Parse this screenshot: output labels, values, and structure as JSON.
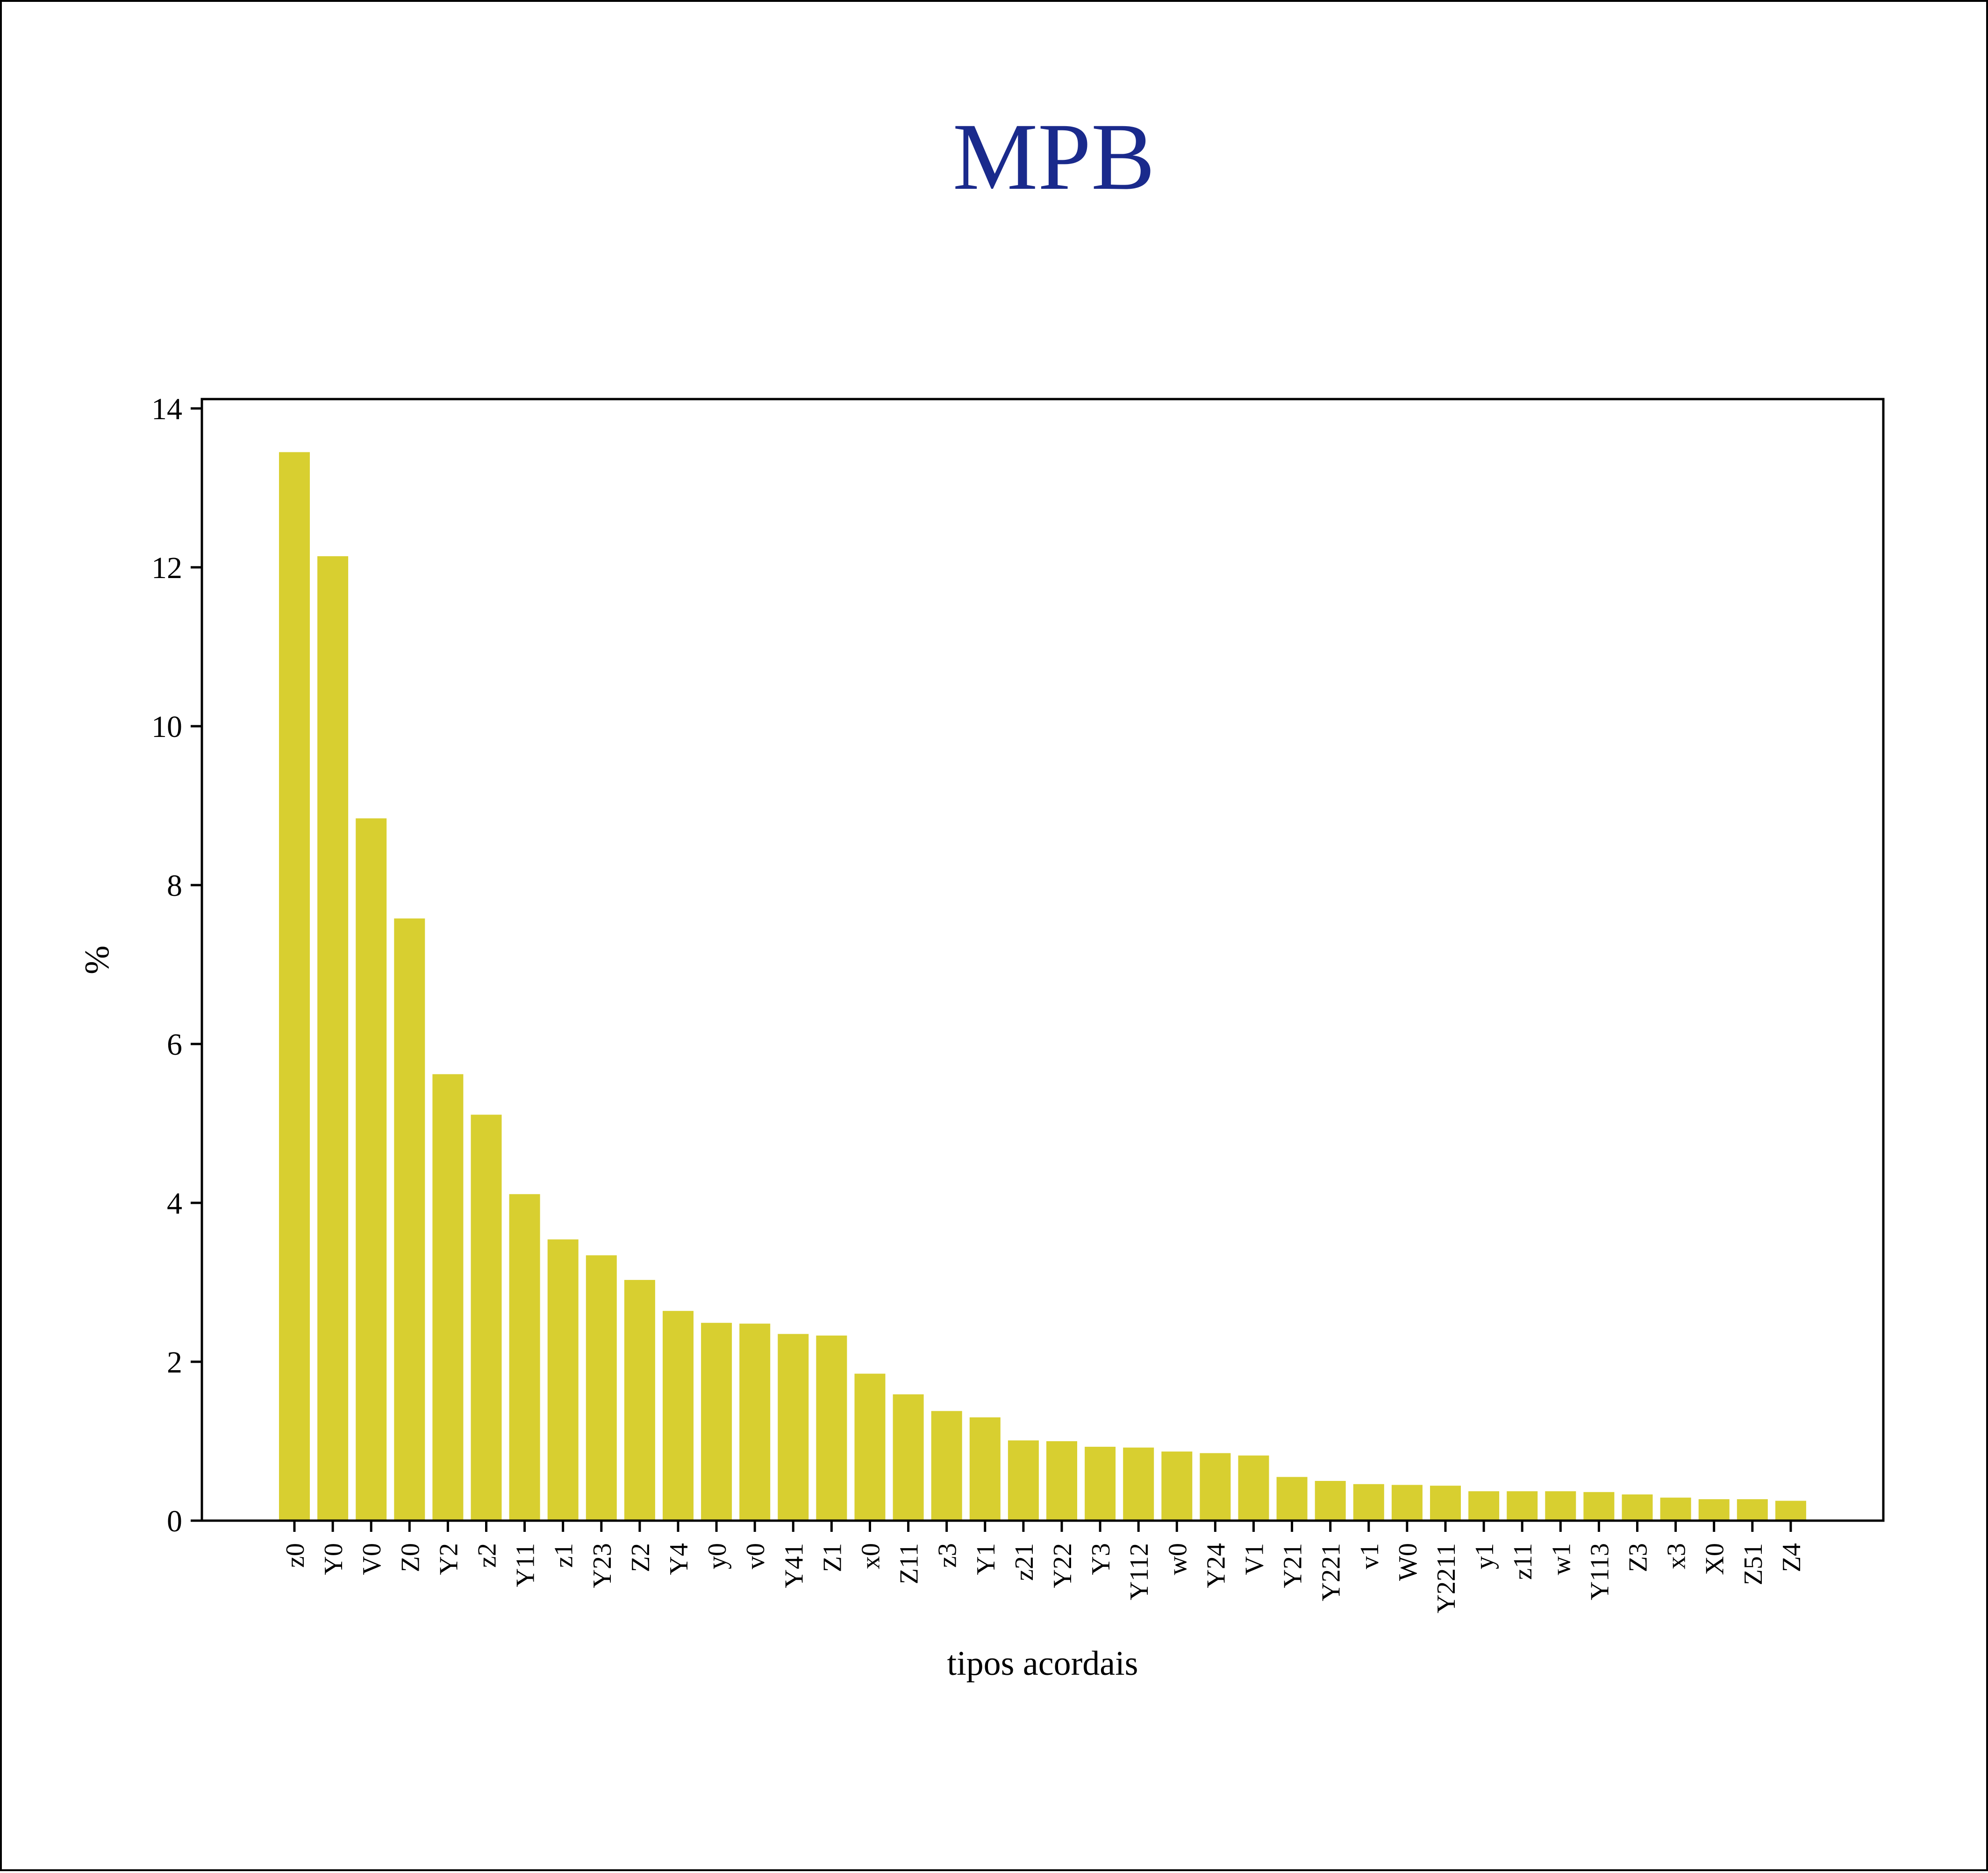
{
  "chart_data": {
    "type": "bar",
    "title": "MPB",
    "xlabel": "tipos acordais",
    "ylabel": "%",
    "ylim": [
      0,
      14
    ],
    "yticks": [
      0,
      2,
      4,
      6,
      8,
      10,
      12,
      14
    ],
    "grid": false,
    "colors": {
      "bar": "#d8cf30",
      "title": "#1a2a8c"
    },
    "categories": [
      "z0",
      "Y0",
      "V0",
      "Z0",
      "Y2",
      "z2",
      "Y11",
      "z1",
      "Y23",
      "Z2",
      "Y4",
      "y0",
      "v0",
      "Y41",
      "Z1",
      "x0",
      "Z11",
      "z3",
      "Y1",
      "z21",
      "Y22",
      "Y3",
      "Y112",
      "w0",
      "Y24",
      "V1",
      "Y21",
      "Y221",
      "v1",
      "W0",
      "Y2211",
      "y1",
      "z11",
      "w1",
      "Y113",
      "Z3",
      "x3",
      "X0",
      "Z51",
      "Z4"
    ],
    "values": [
      13.45,
      12.14,
      8.84,
      7.58,
      5.62,
      5.11,
      4.11,
      3.54,
      3.34,
      3.03,
      2.64,
      2.49,
      2.48,
      2.35,
      2.33,
      1.85,
      1.59,
      1.38,
      1.3,
      1.01,
      1.0,
      0.93,
      0.92,
      0.87,
      0.85,
      0.82,
      0.55,
      0.5,
      0.46,
      0.45,
      0.44,
      0.37,
      0.37,
      0.37,
      0.36,
      0.33,
      0.29,
      0.27,
      0.27,
      0.25
    ]
  }
}
